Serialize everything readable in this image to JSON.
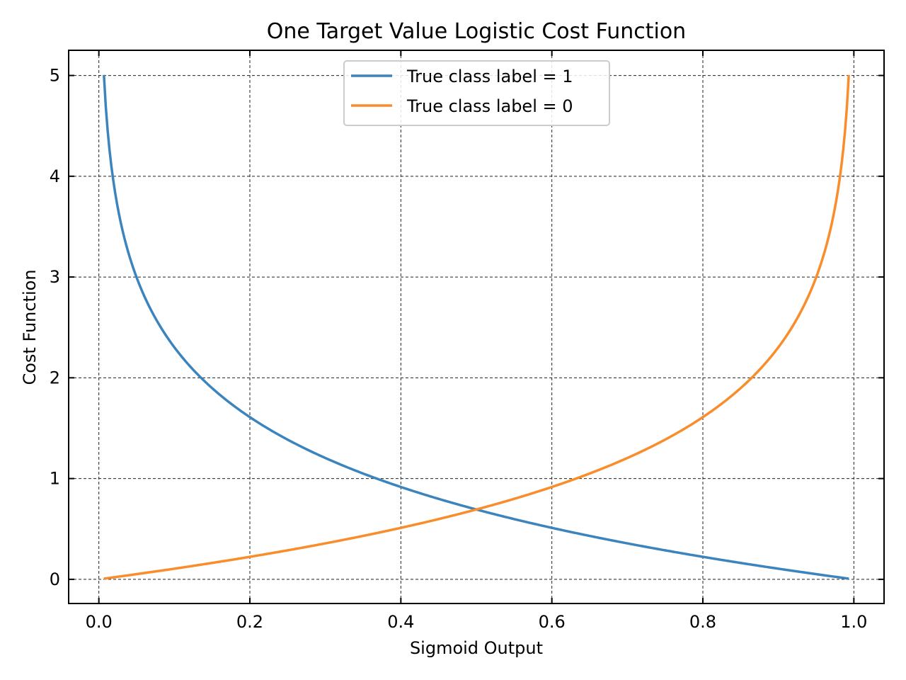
{
  "chart_data": {
    "type": "line",
    "title": "One Target Value Logistic Cost Function",
    "xlabel": "Sigmoid Output",
    "ylabel": "Cost Function",
    "xlim": [
      -0.04,
      1.04
    ],
    "ylim": [
      -0.24,
      5.25
    ],
    "x_ticks": [
      0.0,
      0.2,
      0.4,
      0.6,
      0.8,
      1.0
    ],
    "x_tick_labels": [
      "0.0",
      "0.2",
      "0.4",
      "0.6",
      "0.8",
      "1.0"
    ],
    "y_ticks": [
      0,
      1,
      2,
      3,
      4,
      5
    ],
    "y_tick_labels": [
      "0",
      "1",
      "2",
      "3",
      "4",
      "5"
    ],
    "grid": true,
    "legend_position": "upper center",
    "x_range": [
      0.0067,
      0.9933
    ],
    "series": [
      {
        "name": "True class label = 1",
        "color": "#3b84bd",
        "formula": "-ln(x)",
        "sample_points": [
          [
            0.0067,
            5.0
          ],
          [
            0.05,
            3.0
          ],
          [
            0.1,
            2.3
          ],
          [
            0.2,
            1.61
          ],
          [
            0.3,
            1.2
          ],
          [
            0.4,
            0.92
          ],
          [
            0.5,
            0.69
          ],
          [
            0.6,
            0.51
          ],
          [
            0.7,
            0.36
          ],
          [
            0.8,
            0.22
          ],
          [
            0.9,
            0.11
          ],
          [
            0.9933,
            0.007
          ]
        ]
      },
      {
        "name": "True class label = 0",
        "color": "#f98c2b",
        "formula": "-ln(1-x)",
        "sample_points": [
          [
            0.0067,
            0.007
          ],
          [
            0.1,
            0.11
          ],
          [
            0.2,
            0.22
          ],
          [
            0.3,
            0.36
          ],
          [
            0.4,
            0.51
          ],
          [
            0.5,
            0.69
          ],
          [
            0.6,
            0.92
          ],
          [
            0.7,
            1.2
          ],
          [
            0.8,
            1.61
          ],
          [
            0.9,
            2.3
          ],
          [
            0.95,
            3.0
          ],
          [
            0.9926,
            4.9
          ]
        ]
      }
    ]
  }
}
